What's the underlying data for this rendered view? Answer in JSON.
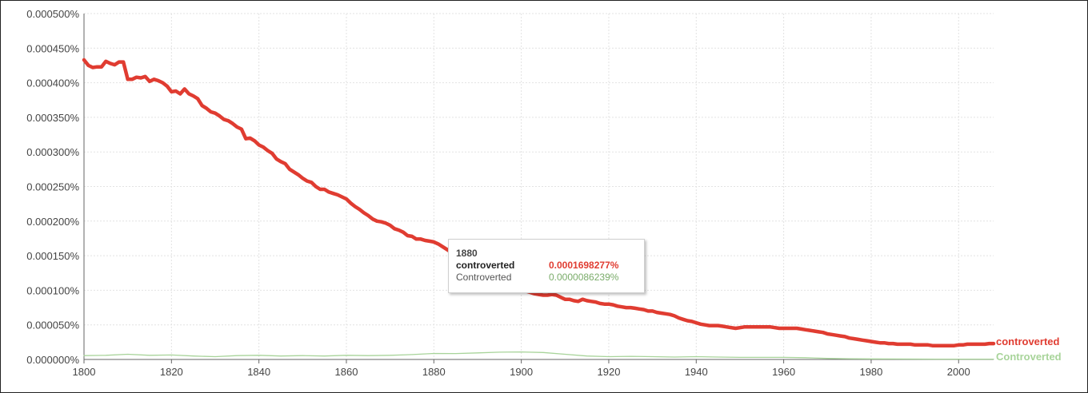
{
  "chart_data": {
    "type": "line",
    "xlim": [
      1800,
      2008
    ],
    "ylim": [
      0,
      0.0005
    ],
    "x_ticks": [
      "1800",
      "1820",
      "1840",
      "1860",
      "1880",
      "1900",
      "1920",
      "1940",
      "1960",
      "1980",
      "2000"
    ],
    "y_ticks": [
      "0.000000%",
      "0.000050%",
      "0.000100%",
      "0.000150%",
      "0.000200%",
      "0.000250%",
      "0.000300%",
      "0.000350%",
      "0.000400%",
      "0.000450%",
      "0.000500%"
    ],
    "grid": true,
    "series": [
      {
        "name": "controverted",
        "color": "#e03c31",
        "points": [
          [
            1800,
            0.000433
          ],
          [
            1801,
            0.000425
          ],
          [
            1802,
            0.000422
          ],
          [
            1803,
            0.000423
          ],
          [
            1804,
            0.000423
          ],
          [
            1805,
            0.000431
          ],
          [
            1806,
            0.000428
          ],
          [
            1807,
            0.000426
          ],
          [
            1808,
            0.00043
          ],
          [
            1809,
            0.00043
          ],
          [
            1810,
            0.000405
          ],
          [
            1811,
            0.000405
          ],
          [
            1812,
            0.000408
          ],
          [
            1813,
            0.000407
          ],
          [
            1814,
            0.000409
          ],
          [
            1815,
            0.000402
          ],
          [
            1816,
            0.000405
          ],
          [
            1817,
            0.000403
          ],
          [
            1818,
            0.0004
          ],
          [
            1819,
            0.000395
          ],
          [
            1820,
            0.000387
          ],
          [
            1821,
            0.000388
          ],
          [
            1822,
            0.000384
          ],
          [
            1823,
            0.000391
          ],
          [
            1824,
            0.000384
          ],
          [
            1825,
            0.000381
          ],
          [
            1826,
            0.000377
          ],
          [
            1827,
            0.000367
          ],
          [
            1828,
            0.000363
          ],
          [
            1829,
            0.000358
          ],
          [
            1830,
            0.000356
          ],
          [
            1831,
            0.000352
          ],
          [
            1832,
            0.000347
          ],
          [
            1833,
            0.000345
          ],
          [
            1834,
            0.000341
          ],
          [
            1835,
            0.000336
          ],
          [
            1836,
            0.000333
          ],
          [
            1837,
            0.000319
          ],
          [
            1838,
            0.00032
          ],
          [
            1839,
            0.000316
          ],
          [
            1840,
            0.00031
          ],
          [
            1841,
            0.000307
          ],
          [
            1842,
            0.000302
          ],
          [
            1843,
            0.000298
          ],
          [
            1844,
            0.00029
          ],
          [
            1845,
            0.000286
          ],
          [
            1846,
            0.000283
          ],
          [
            1847,
            0.000275
          ],
          [
            1848,
            0.000271
          ],
          [
            1849,
            0.000267
          ],
          [
            1850,
            0.000262
          ],
          [
            1851,
            0.000258
          ],
          [
            1852,
            0.000256
          ],
          [
            1853,
            0.00025
          ],
          [
            1854,
            0.000246
          ],
          [
            1855,
            0.000246
          ],
          [
            1856,
            0.000242
          ],
          [
            1857,
            0.00024
          ],
          [
            1858,
            0.000238
          ],
          [
            1859,
            0.000235
          ],
          [
            1860,
            0.000232
          ],
          [
            1861,
            0.000226
          ],
          [
            1862,
            0.000221
          ],
          [
            1863,
            0.000217
          ],
          [
            1864,
            0.000212
          ],
          [
            1865,
            0.000208
          ],
          [
            1866,
            0.000203
          ],
          [
            1867,
            0.0002
          ],
          [
            1868,
            0.000199
          ],
          [
            1869,
            0.000197
          ],
          [
            1870,
            0.000194
          ],
          [
            1871,
            0.000189
          ],
          [
            1872,
            0.000187
          ],
          [
            1873,
            0.000184
          ],
          [
            1874,
            0.000179
          ],
          [
            1875,
            0.000178
          ],
          [
            1876,
            0.000174
          ],
          [
            1877,
            0.000174
          ],
          [
            1878,
            0.000172
          ],
          [
            1879,
            0.000171
          ],
          [
            1880,
            0.00016983
          ],
          [
            1881,
            0.000167
          ],
          [
            1882,
            0.000163
          ],
          [
            1883,
            0.000159
          ],
          [
            1884,
            0.000155
          ],
          [
            1885,
            0.000151
          ],
          [
            1886,
            0.000147
          ],
          [
            1887,
            0.000144
          ],
          [
            1888,
            0.00014
          ],
          [
            1889,
            0.000137
          ],
          [
            1890,
            0.000133
          ],
          [
            1891,
            0.00013
          ],
          [
            1892,
            0.000126
          ],
          [
            1893,
            0.000123
          ],
          [
            1894,
            0.000119
          ],
          [
            1895,
            0.000116
          ],
          [
            1896,
            0.000113
          ],
          [
            1897,
            0.00011
          ],
          [
            1898,
            0.000107
          ],
          [
            1899,
            0.000104
          ],
          [
            1900,
            0.000101
          ],
          [
            1901,
            9.9e-05
          ],
          [
            1902,
            9.7e-05
          ],
          [
            1903,
            9.5e-05
          ],
          [
            1904,
            9.4e-05
          ],
          [
            1905,
            9.3e-05
          ],
          [
            1906,
            9.3e-05
          ],
          [
            1907,
            9.4e-05
          ],
          [
            1908,
            9.3e-05
          ],
          [
            1909,
            9e-05
          ],
          [
            1910,
            8.7e-05
          ],
          [
            1911,
            8.7e-05
          ],
          [
            1912,
            8.5e-05
          ],
          [
            1913,
            8.4e-05
          ],
          [
            1914,
            8.7e-05
          ],
          [
            1915,
            8.5e-05
          ],
          [
            1916,
            8.4e-05
          ],
          [
            1917,
            8.3e-05
          ],
          [
            1918,
            8.1e-05
          ],
          [
            1919,
            8e-05
          ],
          [
            1920,
            8e-05
          ],
          [
            1921,
            7.9e-05
          ],
          [
            1922,
            7.7e-05
          ],
          [
            1923,
            7.6e-05
          ],
          [
            1924,
            7.5e-05
          ],
          [
            1925,
            7.5e-05
          ],
          [
            1926,
            7.4e-05
          ],
          [
            1927,
            7.3e-05
          ],
          [
            1928,
            7.2e-05
          ],
          [
            1929,
            7e-05
          ],
          [
            1930,
            7e-05
          ],
          [
            1931,
            6.8e-05
          ],
          [
            1932,
            6.7e-05
          ],
          [
            1933,
            6.6e-05
          ],
          [
            1934,
            6.5e-05
          ],
          [
            1935,
            6.3e-05
          ],
          [
            1936,
            6e-05
          ],
          [
            1937,
            5.8e-05
          ],
          [
            1938,
            5.6e-05
          ],
          [
            1939,
            5.5e-05
          ],
          [
            1940,
            5.3e-05
          ],
          [
            1941,
            5.1e-05
          ],
          [
            1942,
            5e-05
          ],
          [
            1943,
            4.9e-05
          ],
          [
            1944,
            4.9e-05
          ],
          [
            1945,
            4.9e-05
          ],
          [
            1946,
            4.8e-05
          ],
          [
            1947,
            4.7e-05
          ],
          [
            1948,
            4.6e-05
          ],
          [
            1949,
            4.5e-05
          ],
          [
            1950,
            4.6e-05
          ],
          [
            1951,
            4.7e-05
          ],
          [
            1952,
            4.7e-05
          ],
          [
            1953,
            4.7e-05
          ],
          [
            1954,
            4.7e-05
          ],
          [
            1955,
            4.7e-05
          ],
          [
            1956,
            4.7e-05
          ],
          [
            1957,
            4.7e-05
          ],
          [
            1958,
            4.6e-05
          ],
          [
            1959,
            4.5e-05
          ],
          [
            1960,
            4.5e-05
          ],
          [
            1961,
            4.5e-05
          ],
          [
            1962,
            4.5e-05
          ],
          [
            1963,
            4.5e-05
          ],
          [
            1964,
            4.4e-05
          ],
          [
            1965,
            4.3e-05
          ],
          [
            1966,
            4.2e-05
          ],
          [
            1967,
            4.1e-05
          ],
          [
            1968,
            4e-05
          ],
          [
            1969,
            3.9e-05
          ],
          [
            1970,
            3.7e-05
          ],
          [
            1971,
            3.6e-05
          ],
          [
            1972,
            3.5e-05
          ],
          [
            1973,
            3.4e-05
          ],
          [
            1974,
            3.3e-05
          ],
          [
            1975,
            3.1e-05
          ],
          [
            1976,
            3e-05
          ],
          [
            1977,
            2.9e-05
          ],
          [
            1978,
            2.8e-05
          ],
          [
            1979,
            2.7e-05
          ],
          [
            1980,
            2.6e-05
          ],
          [
            1981,
            2.5e-05
          ],
          [
            1982,
            2.4e-05
          ],
          [
            1983,
            2.4e-05
          ],
          [
            1984,
            2.3e-05
          ],
          [
            1985,
            2.3e-05
          ],
          [
            1986,
            2.2e-05
          ],
          [
            1987,
            2.2e-05
          ],
          [
            1988,
            2.2e-05
          ],
          [
            1989,
            2.2e-05
          ],
          [
            1990,
            2.1e-05
          ],
          [
            1991,
            2.1e-05
          ],
          [
            1992,
            2.1e-05
          ],
          [
            1993,
            2.1e-05
          ],
          [
            1994,
            2e-05
          ],
          [
            1995,
            2e-05
          ],
          [
            1996,
            2e-05
          ],
          [
            1997,
            2e-05
          ],
          [
            1998,
            2e-05
          ],
          [
            1999,
            2e-05
          ],
          [
            2000,
            2.1e-05
          ],
          [
            2001,
            2.1e-05
          ],
          [
            2002,
            2.2e-05
          ],
          [
            2003,
            2.2e-05
          ],
          [
            2004,
            2.2e-05
          ],
          [
            2005,
            2.2e-05
          ],
          [
            2006,
            2.2e-05
          ],
          [
            2007,
            2.3e-05
          ],
          [
            2008,
            2.3e-05
          ]
        ]
      },
      {
        "name": "Controverted",
        "color": "#a8d49a",
        "points": [
          [
            1800,
            5.5e-06
          ],
          [
            1805,
            6e-06
          ],
          [
            1810,
            7.5e-06
          ],
          [
            1815,
            6e-06
          ],
          [
            1820,
            6.5e-06
          ],
          [
            1825,
            5e-06
          ],
          [
            1830,
            4e-06
          ],
          [
            1835,
            5.5e-06
          ],
          [
            1840,
            6e-06
          ],
          [
            1845,
            5e-06
          ],
          [
            1850,
            5.5e-06
          ],
          [
            1855,
            5e-06
          ],
          [
            1860,
            6e-06
          ],
          [
            1865,
            5.5e-06
          ],
          [
            1870,
            6e-06
          ],
          [
            1875,
            7e-06
          ],
          [
            1880,
            8.6239e-06
          ],
          [
            1885,
            8.5e-06
          ],
          [
            1890,
            9.5e-06
          ],
          [
            1895,
            1.05e-05
          ],
          [
            1900,
            1.08e-05
          ],
          [
            1905,
            1e-05
          ],
          [
            1910,
            7.5e-06
          ],
          [
            1915,
            5e-06
          ],
          [
            1920,
            4e-06
          ],
          [
            1925,
            4.5e-06
          ],
          [
            1930,
            4e-06
          ],
          [
            1935,
            3.5e-06
          ],
          [
            1940,
            4e-06
          ],
          [
            1945,
            3.5e-06
          ],
          [
            1950,
            3e-06
          ],
          [
            1955,
            3e-06
          ],
          [
            1960,
            3e-06
          ],
          [
            1965,
            2.5e-06
          ],
          [
            1970,
            1.5e-06
          ],
          [
            1975,
            1e-06
          ],
          [
            1980,
            8e-07
          ],
          [
            1985,
            7e-07
          ],
          [
            1990,
            6e-07
          ],
          [
            1995,
            5e-07
          ],
          [
            2000,
            5e-07
          ],
          [
            2005,
            5e-07
          ],
          [
            2008,
            5e-07
          ]
        ]
      }
    ],
    "tooltip": {
      "year": "1880",
      "rows": [
        {
          "name": "controverted",
          "value": "0.0001698277%"
        },
        {
          "name": "Controverted",
          "value": "0.0000086239%"
        }
      ]
    }
  }
}
